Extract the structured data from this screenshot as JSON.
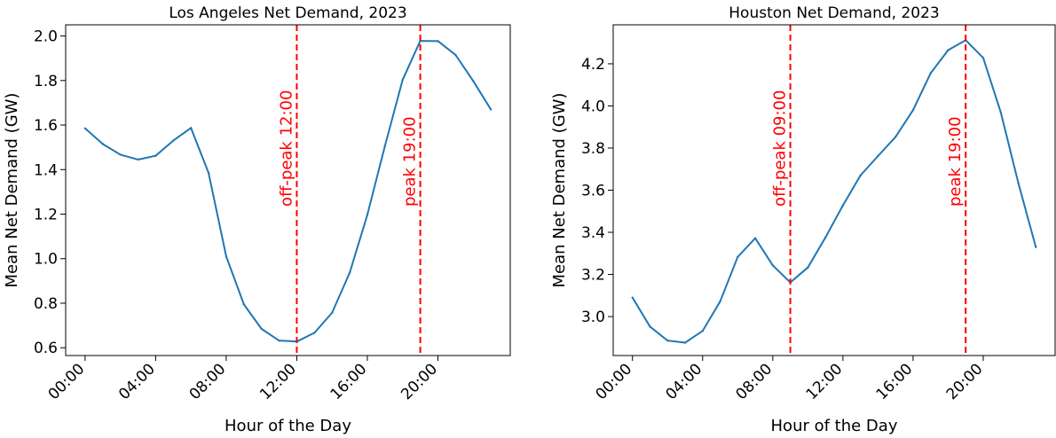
{
  "colors": {
    "line": "#1f77b4",
    "marker": "#ff0000"
  },
  "chart_data": [
    {
      "type": "line",
      "title": "Los Angeles Net Demand, 2023",
      "xlabel": "Hour of the Day",
      "ylabel": "Mean Net Demand (GW)",
      "x": [
        0,
        1,
        2,
        3,
        4,
        5,
        6,
        7,
        8,
        9,
        10,
        11,
        12,
        13,
        14,
        15,
        16,
        17,
        18,
        19,
        20,
        21,
        22,
        23
      ],
      "values": [
        1.585,
        1.515,
        1.467,
        1.445,
        1.462,
        1.53,
        1.587,
        1.385,
        1.01,
        0.795,
        0.685,
        0.632,
        0.628,
        0.667,
        0.757,
        0.937,
        1.197,
        1.507,
        1.803,
        1.978,
        1.977,
        1.915,
        1.798,
        1.67
      ],
      "xlim": [
        -1.1,
        24.1
      ],
      "ylim": [
        0.565,
        2.05
      ],
      "xticks": [
        0,
        4,
        8,
        12,
        16,
        20
      ],
      "xtick_labels": [
        "00:00",
        "04:00",
        "08:00",
        "12:00",
        "16:00",
        "20:00"
      ],
      "yticks": [
        0.6,
        0.8,
        1.0,
        1.2,
        1.4,
        1.6,
        1.8,
        2.0
      ],
      "ytick_labels": [
        "0.6",
        "0.8",
        "1.0",
        "1.2",
        "1.4",
        "1.6",
        "1.8",
        "2.0"
      ],
      "annotations": [
        {
          "x": 12,
          "label": "off-peak 12:00"
        },
        {
          "x": 19,
          "label": "peak 19:00"
        }
      ],
      "grid": false
    },
    {
      "type": "line",
      "title": "Houston Net Demand, 2023",
      "xlabel": "Hour of the Day",
      "ylabel": "Mean Net Demand (GW)",
      "x": [
        0,
        1,
        2,
        3,
        4,
        5,
        6,
        7,
        8,
        9,
        10,
        11,
        12,
        13,
        14,
        15,
        16,
        17,
        18,
        19,
        20,
        21,
        22,
        23
      ],
      "values": [
        3.09,
        2.952,
        2.886,
        2.876,
        2.932,
        3.072,
        3.283,
        3.372,
        3.243,
        3.162,
        3.233,
        3.375,
        3.528,
        3.67,
        3.762,
        3.853,
        3.98,
        4.155,
        4.265,
        4.312,
        4.228,
        3.97,
        3.635,
        3.33
      ],
      "xlim": [
        -1.1,
        24.1
      ],
      "ylim": [
        2.815,
        4.385
      ],
      "xticks": [
        0,
        4,
        8,
        12,
        16,
        20
      ],
      "xtick_labels": [
        "00:00",
        "04:00",
        "08:00",
        "12:00",
        "16:00",
        "20:00"
      ],
      "yticks": [
        3.0,
        3.2,
        3.4,
        3.6,
        3.8,
        4.0,
        4.2
      ],
      "ytick_labels": [
        "3.0",
        "3.2",
        "3.4",
        "3.6",
        "3.8",
        "4.0",
        "4.2"
      ],
      "annotations": [
        {
          "x": 9,
          "label": "off-peak 09:00"
        },
        {
          "x": 19,
          "label": "peak 19:00"
        }
      ],
      "grid": false
    }
  ]
}
